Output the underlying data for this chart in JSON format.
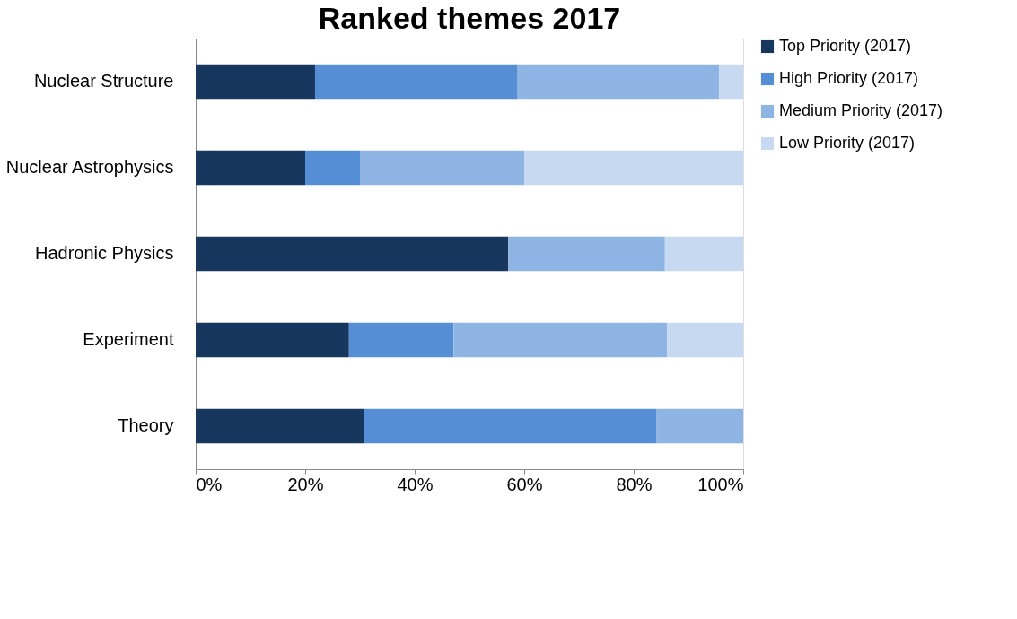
{
  "chart_data": {
    "type": "bar",
    "orientation": "horizontal",
    "stacked": true,
    "title": "Ranked themes 2017",
    "categories": [
      "Nuclear Structure",
      "Nuclear Astrophysics",
      "Hadronic Physics",
      "Experiment",
      "Theory"
    ],
    "series": [
      {
        "name": "Top Priority (2017)",
        "color": "#17375e",
        "values": [
          21.8,
          20,
          57.1,
          28,
          30.8
        ]
      },
      {
        "name": "High Priority (2017)",
        "color": "#558ed5",
        "values": [
          37,
          10,
          0,
          19.1,
          53.4
        ]
      },
      {
        "name": "Medium Priority (2017)",
        "color": "#8eb4e3",
        "values": [
          36.8,
          30,
          28.6,
          39,
          15.8
        ]
      },
      {
        "name": "Low Priority (2017)",
        "color": "#c6d9f1",
        "values": [
          4.4,
          40,
          14.3,
          13.9,
          0
        ]
      }
    ],
    "xlim": [
      0,
      100
    ],
    "xticks": [
      {
        "value": 0,
        "label": "0%"
      },
      {
        "value": 20,
        "label": "20%"
      },
      {
        "value": 40,
        "label": "40%"
      },
      {
        "value": 60,
        "label": "60%"
      },
      {
        "value": 80,
        "label": "80%"
      },
      {
        "value": 100,
        "label": "100%"
      }
    ],
    "grid": false,
    "legend": "right"
  }
}
